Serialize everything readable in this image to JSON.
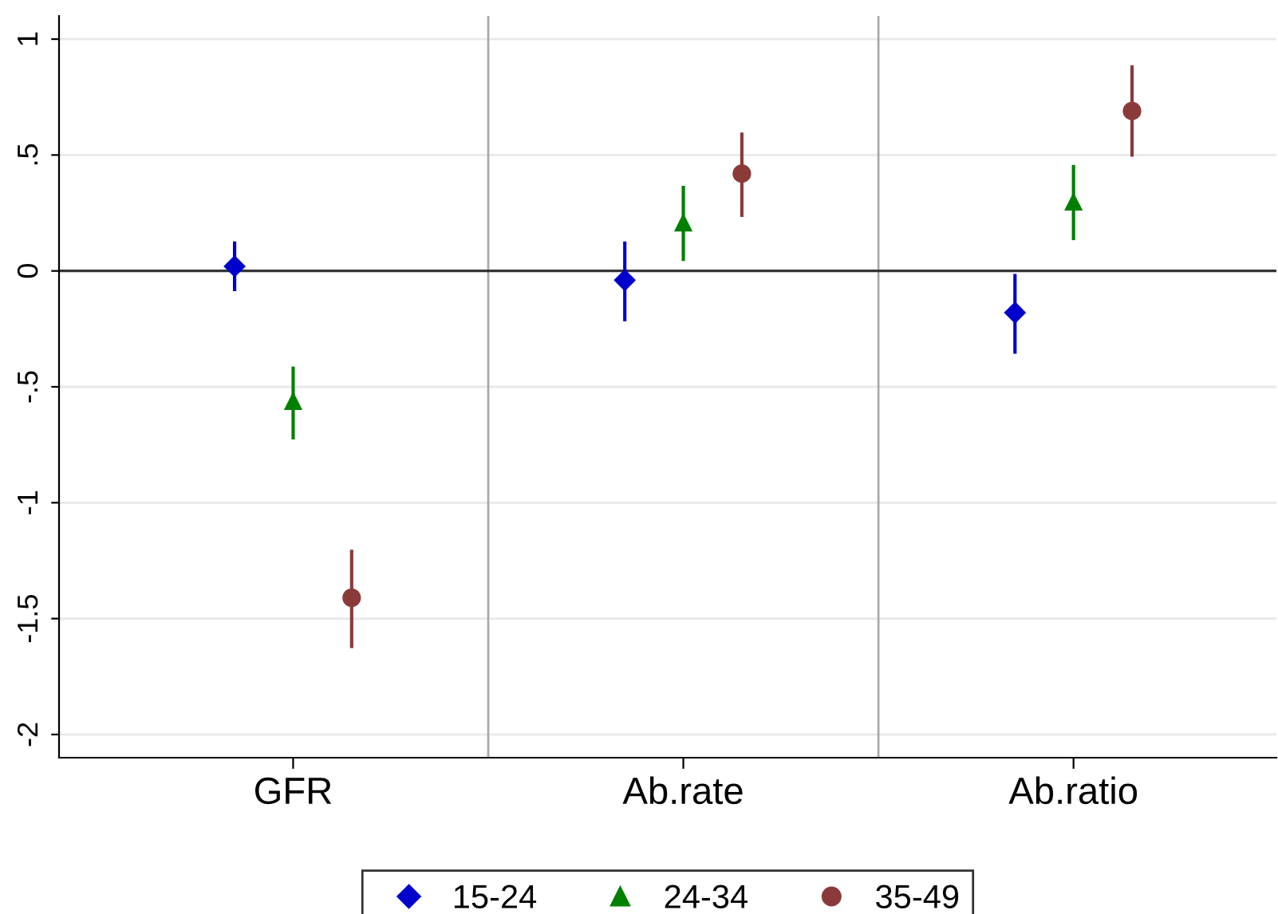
{
  "chart_data": {
    "type": "scatter",
    "categories": [
      "GFR",
      "Ab.rate",
      "Ab.ratio"
    ],
    "series": [
      {
        "name": "15-24",
        "color": "#0000cc",
        "marker": "diamond",
        "values": [
          0.02,
          -0.04,
          -0.18
        ],
        "errors": [
          [
            -0.08,
            0.12
          ],
          [
            -0.21,
            0.12
          ],
          [
            -0.35,
            -0.02
          ]
        ]
      },
      {
        "name": "24-34",
        "color": "#008000",
        "marker": "triangle",
        "values": [
          -0.56,
          0.21,
          0.3
        ],
        "errors": [
          [
            -0.72,
            -0.42
          ],
          [
            0.05,
            0.36
          ],
          [
            0.14,
            0.45
          ]
        ]
      },
      {
        "name": "35-49",
        "color": "#8b3a3a",
        "marker": "circle",
        "values": [
          -1.41,
          0.42,
          0.69
        ],
        "errors": [
          [
            -1.62,
            -1.21
          ],
          [
            0.24,
            0.59
          ],
          [
            0.5,
            0.88
          ]
        ]
      }
    ],
    "ylim": [
      -2.1,
      1.1
    ],
    "yticks": [
      {
        "value": 1,
        "label": "1"
      },
      {
        "value": 0.5,
        "label": ".5"
      },
      {
        "value": 0,
        "label": "0"
      },
      {
        "value": -0.5,
        "label": "-.5"
      },
      {
        "value": -1,
        "label": "-1"
      },
      {
        "value": -1.5,
        "label": "-1.5"
      },
      {
        "value": -2,
        "label": "-2"
      }
    ],
    "grid": "y",
    "ref_lines": [
      {
        "axis": "y",
        "value": 0,
        "color": "#333333"
      }
    ],
    "legend": "bottom"
  }
}
